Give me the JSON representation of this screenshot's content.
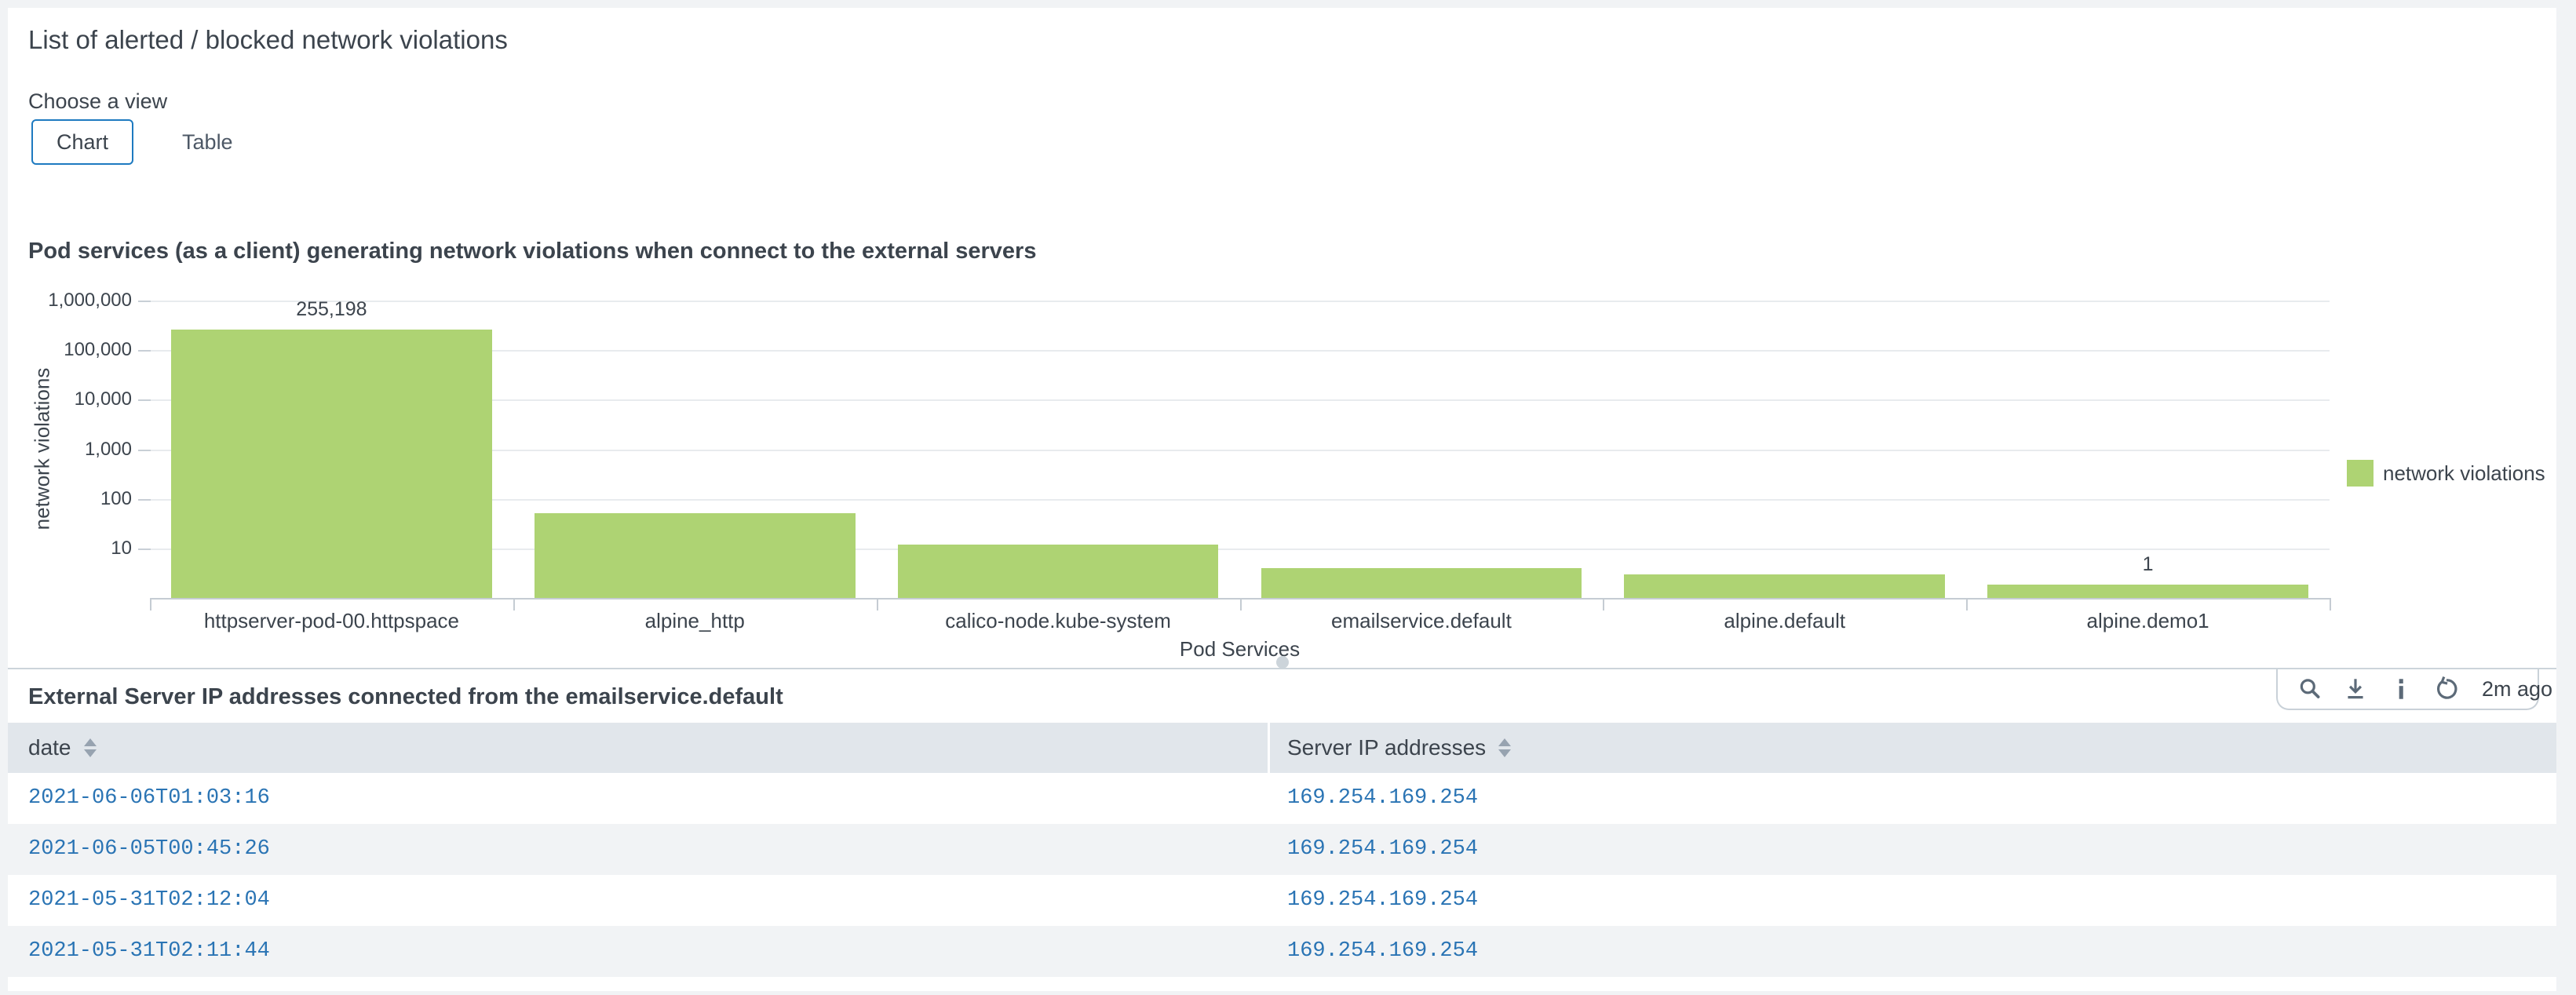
{
  "panel": {
    "title": "List of alerted / blocked network violations"
  },
  "view_chooser": {
    "label": "Choose a view",
    "options": [
      {
        "label": "Chart",
        "selected": true
      },
      {
        "label": "Table",
        "selected": false
      }
    ]
  },
  "chart_panel": {
    "title": "Pod services (as a client) generating network violations when connect to the external servers"
  },
  "chart_data": {
    "type": "bar",
    "title": "Pod services (as a client) generating network violations when connect to the external servers",
    "categories": [
      "httpserver-pod-00.httpspace",
      "alpine_http",
      "calico-node.kube-system",
      "emailservice.default",
      "alpine.default",
      "alpine.demo1"
    ],
    "values": [
      255198,
      52,
      12,
      4,
      3,
      1
    ],
    "value_labels": [
      "255,198",
      "",
      "",
      "",
      "",
      "1"
    ],
    "xlabel": "Pod Services",
    "ylabel": "network violations",
    "yscale": "log",
    "ylim": [
      1,
      1000000
    ],
    "ytick_labels": [
      "1,000,000",
      "100,000",
      "10,000",
      "1,000",
      "100",
      "10"
    ],
    "grid": true,
    "legend_position": "right",
    "series_color": "#aed373",
    "legend": [
      {
        "label": "network violations",
        "color": "#aed373"
      }
    ]
  },
  "table_panel": {
    "title": "External Server IP addresses connected from the emailservice.default",
    "toolbar": {
      "icons": [
        "search",
        "download",
        "info",
        "refresh"
      ],
      "last_updated": "2m ago"
    },
    "columns": [
      {
        "label": "date",
        "sortable": true
      },
      {
        "label": "Server IP addresses",
        "sortable": true
      }
    ],
    "rows": [
      [
        "2021-06-06T01:03:16",
        "169.254.169.254"
      ],
      [
        "2021-06-05T00:45:26",
        "169.254.169.254"
      ],
      [
        "2021-05-31T02:12:04",
        "169.254.169.254"
      ],
      [
        "2021-05-31T02:11:44",
        "169.254.169.254"
      ]
    ]
  },
  "colors": {
    "accent_blue": "#1e7ac0",
    "link_blue": "#2a74b4",
    "bar_green": "#aed373",
    "text_dark": "#3c444d",
    "header_bg": "#e1e6eb",
    "zebra_bg": "#f1f3f5",
    "page_bg": "#f1f3f5"
  }
}
